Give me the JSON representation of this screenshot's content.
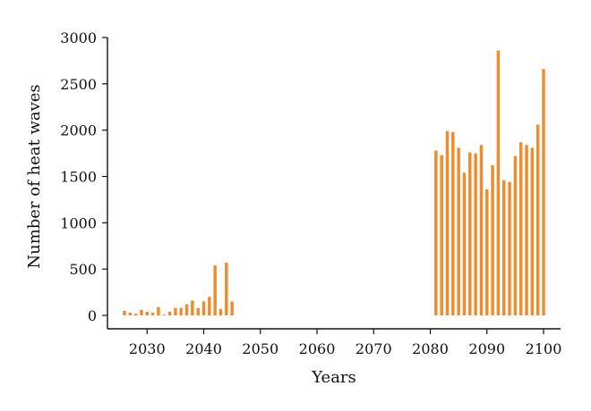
{
  "chart_data": {
    "type": "bar",
    "title": "",
    "xlabel": "Years",
    "ylabel": "Number of heat waves",
    "xlim": [
      2023,
      2103
    ],
    "ylim": [
      0,
      3000
    ],
    "xticks": [
      2030,
      2040,
      2050,
      2060,
      2070,
      2080,
      2090,
      2100
    ],
    "yticks": [
      0,
      500,
      1000,
      1500,
      2000,
      2500,
      3000
    ],
    "grid": false,
    "legend": "none",
    "bar_color": "#f08c2e",
    "x": [
      2026,
      2027,
      2028,
      2029,
      2030,
      2031,
      2032,
      2033,
      2034,
      2035,
      2036,
      2037,
      2038,
      2039,
      2040,
      2041,
      2042,
      2043,
      2044,
      2045,
      2081,
      2082,
      2083,
      2084,
      2085,
      2086,
      2087,
      2088,
      2089,
      2090,
      2091,
      2092,
      2093,
      2094,
      2095,
      2096,
      2097,
      2098,
      2099,
      2100
    ],
    "values": [
      50,
      30,
      20,
      60,
      40,
      30,
      90,
      10,
      40,
      80,
      80,
      120,
      160,
      80,
      150,
      200,
      540,
      70,
      570,
      150,
      1780,
      1730,
      1990,
      1980,
      1810,
      1540,
      1760,
      1750,
      1840,
      1360,
      1620,
      2860,
      1460,
      1440,
      1720,
      1870,
      1840,
      1810,
      2060,
      2660
    ]
  }
}
